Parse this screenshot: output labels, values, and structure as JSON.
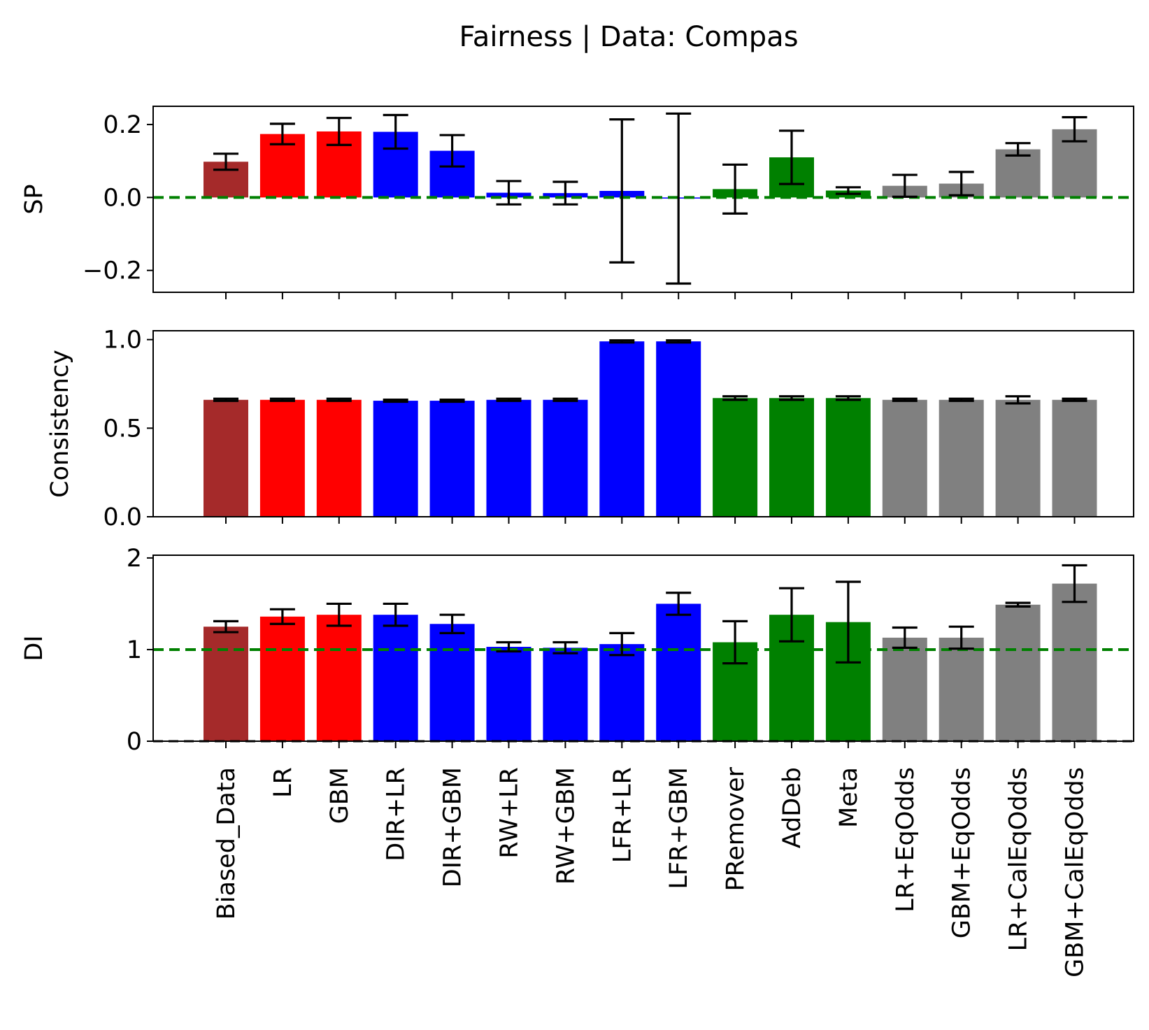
{
  "chart_data": {
    "type": "bar",
    "title": "Fairness  | Data: Compas",
    "categories": [
      "Biased_Data",
      "LR",
      "GBM",
      "DIR+LR",
      "DIR+GBM",
      "RW+LR",
      "RW+GBM",
      "LFR+LR",
      "LFR+GBM",
      "PRemover",
      "AdDeb",
      "Meta",
      "LR+EqOdds",
      "GBM+EqOdds",
      "LR+CalEqOdds",
      "GBM+CalEqOdds"
    ],
    "bar_colors": [
      "#a52a2a",
      "#ff0000",
      "#ff0000",
      "#0000ff",
      "#0000ff",
      "#0000ff",
      "#0000ff",
      "#0000ff",
      "#0000ff",
      "#008000",
      "#008000",
      "#008000",
      "#808080",
      "#808080",
      "#808080",
      "#808080"
    ],
    "reference_line_color": "#008000",
    "panels": [
      {
        "ylabel": "SP",
        "ylim": [
          -0.26,
          0.25
        ],
        "yticks": [
          -0.2,
          0.0,
          0.2
        ],
        "ytick_labels": [
          "−0.2",
          "0.0",
          "0.2"
        ],
        "reference_line": 0.0,
        "values": [
          0.098,
          0.174,
          0.181,
          0.18,
          0.128,
          0.013,
          0.012,
          0.018,
          -0.003,
          0.023,
          0.11,
          0.019,
          0.032,
          0.038,
          0.132,
          0.187
        ],
        "errors": [
          0.022,
          0.028,
          0.037,
          0.046,
          0.043,
          0.032,
          0.031,
          0.196,
          0.233,
          0.067,
          0.073,
          0.009,
          0.03,
          0.032,
          0.017,
          0.033
        ]
      },
      {
        "ylabel": "Consistency",
        "ylim": [
          0.0,
          1.05
        ],
        "yticks": [
          0.0,
          0.5,
          1.0
        ],
        "ytick_labels": [
          "0.0",
          "0.5",
          "1.0"
        ],
        "reference_line": null,
        "values": [
          0.66,
          0.66,
          0.66,
          0.655,
          0.655,
          0.66,
          0.66,
          0.99,
          0.99,
          0.67,
          0.67,
          0.67,
          0.66,
          0.66,
          0.66,
          0.66
        ],
        "errors": [
          0.006,
          0.006,
          0.006,
          0.006,
          0.006,
          0.006,
          0.006,
          0.006,
          0.006,
          0.01,
          0.01,
          0.01,
          0.006,
          0.006,
          0.02,
          0.006
        ]
      },
      {
        "ylabel": "DI",
        "ylim": [
          0,
          2.03
        ],
        "yticks": [
          0,
          1,
          2
        ],
        "ytick_labels": [
          "0",
          "1",
          "2"
        ],
        "reference_line": 1.0,
        "baseline_line": 0.0,
        "values": [
          1.25,
          1.36,
          1.38,
          1.38,
          1.28,
          1.03,
          1.02,
          1.06,
          1.5,
          1.08,
          1.38,
          1.3,
          1.13,
          1.13,
          1.49,
          1.72
        ],
        "errors": [
          0.06,
          0.08,
          0.12,
          0.12,
          0.1,
          0.05,
          0.06,
          0.12,
          0.12,
          0.23,
          0.29,
          0.44,
          0.11,
          0.12,
          0.02,
          0.2
        ]
      }
    ]
  }
}
